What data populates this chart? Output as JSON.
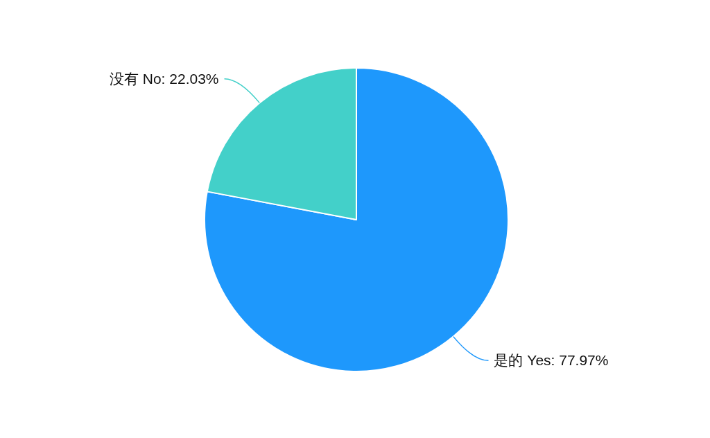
{
  "chart_data": {
    "type": "pie",
    "categories": [
      "是的 Yes",
      "没有 No"
    ],
    "values": [
      77.97,
      22.03
    ],
    "colors": [
      "#1e98fc",
      "#43d0c9"
    ],
    "value_labels": [
      "77.97%",
      "22.03%"
    ]
  }
}
